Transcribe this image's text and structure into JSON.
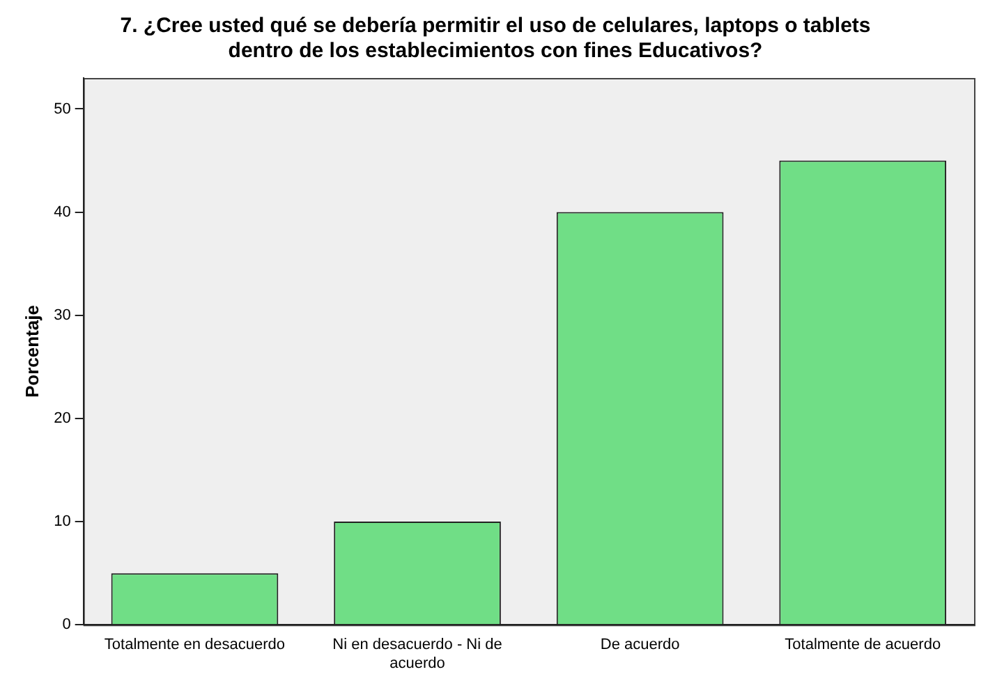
{
  "chart_data": {
    "type": "bar",
    "title": "7. ¿Cree usted qué se debería permitir el uso de celulares, laptops o tablets dentro de los establecimientos con fines Educativos?",
    "ylabel": "Porcentaje",
    "categories": [
      "Totalmente en desacuerdo",
      "Ni en desacuerdo - Ni de acuerdo",
      "De acuerdo",
      "Totalmente de acuerdo"
    ],
    "values": [
      5,
      10,
      40,
      45
    ],
    "color": "#70de86",
    "ylim": [
      0,
      53
    ],
    "yticks": [
      0,
      10,
      20,
      30,
      40,
      50
    ],
    "grid": false,
    "legend": false
  }
}
